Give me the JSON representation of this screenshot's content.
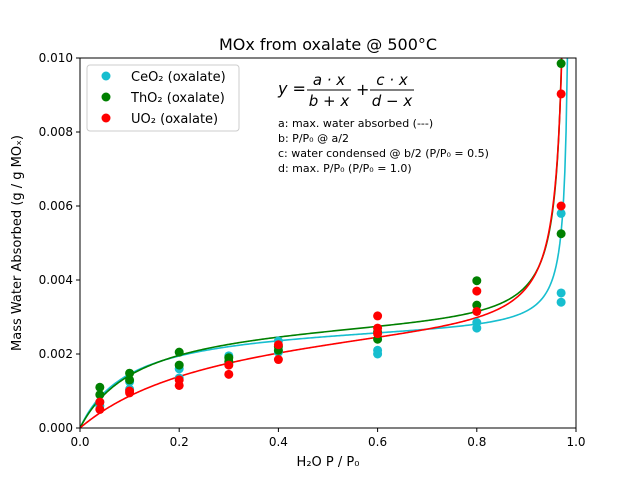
{
  "chart_data": {
    "type": "scatter",
    "title": "MOx from oxalate @ 500°C",
    "xlabel": "H₂O P / P₀",
    "ylabel": "Mass Water Absorbed (g / g MOₓ)",
    "xlim": [
      0.0,
      1.0
    ],
    "ylim": [
      0.0,
      0.01
    ],
    "xticks": [
      "0.0",
      "0.2",
      "0.4",
      "0.6",
      "0.8",
      "1.0"
    ],
    "yticks": [
      "0.000",
      "0.002",
      "0.004",
      "0.006",
      "0.008",
      "0.010"
    ],
    "grid": false,
    "legend_placement": "upper-left",
    "equation": {
      "lhs": "y =",
      "num1": "a · x",
      "den1": "b + x",
      "plus": "+",
      "num2": "c · x",
      "den2": "d − x",
      "notes": [
        "a: max. water absorbed (---)",
        "b: P/P₀ @ a/2",
        "c: water condensed @ b/2 (P/P₀ = 0.5)",
        "d: max. P/P₀ (P/P₀ = 1.0)"
      ]
    },
    "series": [
      {
        "name": "CeO₂ (oxalate)",
        "color": "#17becf",
        "points": [
          [
            0.04,
            0.0007
          ],
          [
            0.04,
            0.0006
          ],
          [
            0.1,
            0.00125
          ],
          [
            0.1,
            0.00105
          ],
          [
            0.2,
            0.0016
          ],
          [
            0.2,
            0.00135
          ],
          [
            0.3,
            0.00195
          ],
          [
            0.3,
            0.00175
          ],
          [
            0.4,
            0.00235
          ],
          [
            0.4,
            0.00205
          ],
          [
            0.6,
            0.0021
          ],
          [
            0.6,
            0.002
          ],
          [
            0.8,
            0.00285
          ],
          [
            0.8,
            0.0027
          ],
          [
            0.97,
            0.0058
          ],
          [
            0.97,
            0.00365
          ],
          [
            0.97,
            0.0034
          ]
        ],
        "fit": {
          "a": 0.0029,
          "b": 0.1,
          "c": 5.5e-05,
          "d": 0.99
        }
      },
      {
        "name": "ThO₂ (oxalate)",
        "color": "#008000",
        "points": [
          [
            0.04,
            0.0011
          ],
          [
            0.04,
            0.0009
          ],
          [
            0.1,
            0.00148
          ],
          [
            0.1,
            0.0013
          ],
          [
            0.2,
            0.00205
          ],
          [
            0.2,
            0.0017
          ],
          [
            0.3,
            0.0019
          ],
          [
            0.3,
            0.0018
          ],
          [
            0.4,
            0.0022
          ],
          [
            0.4,
            0.0021
          ],
          [
            0.6,
            0.0026
          ],
          [
            0.6,
            0.0024
          ],
          [
            0.8,
            0.00398
          ],
          [
            0.8,
            0.00332
          ],
          [
            0.97,
            0.00985
          ],
          [
            0.97,
            0.00525
          ]
        ],
        "fit": {
          "a": 0.0031,
          "b": 0.12,
          "c": 0.000105,
          "d": 0.985
        }
      },
      {
        "name": "UO₂ (oxalate)",
        "color": "#ff0000",
        "points": [
          [
            0.04,
            0.0007
          ],
          [
            0.04,
            0.0005
          ],
          [
            0.1,
            0.001
          ],
          [
            0.1,
            0.00095
          ],
          [
            0.2,
            0.0013
          ],
          [
            0.2,
            0.00115
          ],
          [
            0.3,
            0.0017
          ],
          [
            0.3,
            0.00145
          ],
          [
            0.4,
            0.00225
          ],
          [
            0.4,
            0.00185
          ],
          [
            0.6,
            0.00303
          ],
          [
            0.6,
            0.0027
          ],
          [
            0.6,
            0.00255
          ],
          [
            0.8,
            0.0037
          ],
          [
            0.8,
            0.00315
          ],
          [
            0.97,
            0.00903
          ],
          [
            0.97,
            0.006
          ]
        ],
        "fit": {
          "a": 0.0034,
          "b": 0.3,
          "c": 0.00012,
          "d": 0.987
        }
      }
    ]
  }
}
